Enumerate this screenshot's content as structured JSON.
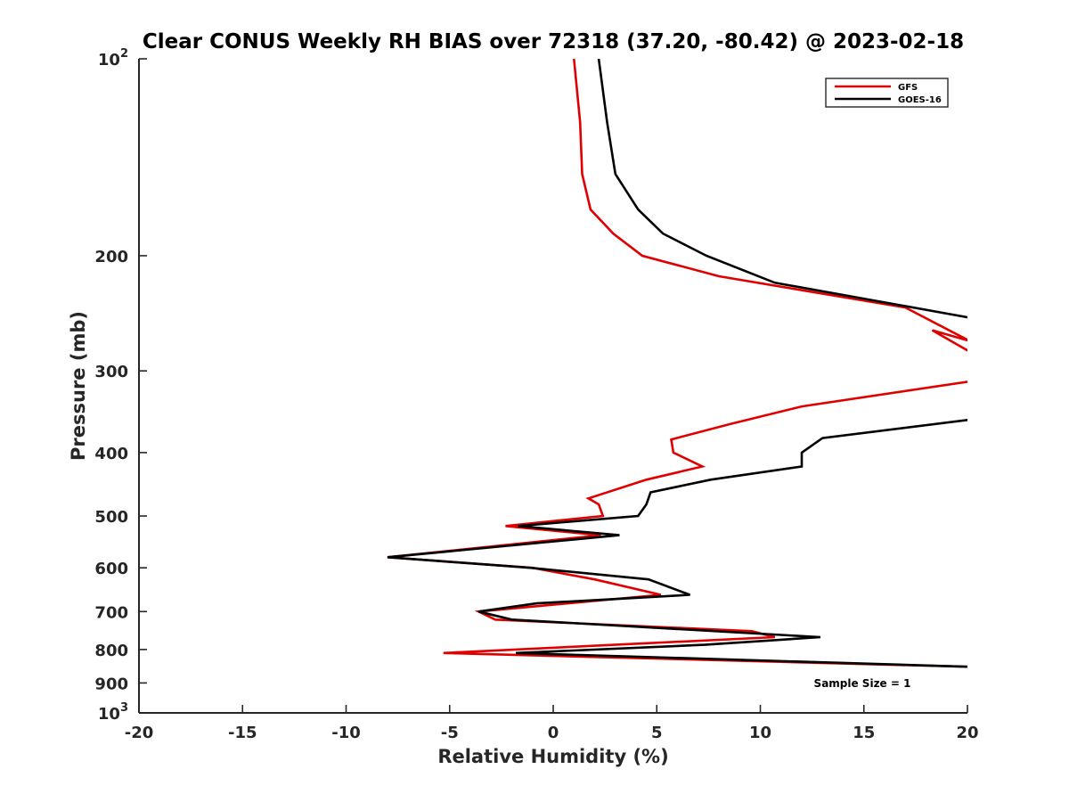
{
  "chart_data": {
    "type": "line",
    "title": "Clear CONUS Weekly RH BIAS over 72318 (37.20, -80.42) @ 2023-02-18",
    "xlabel": "Relative Humidity (%)",
    "ylabel": "Pressure (mb)",
    "xlim": [
      -20,
      20
    ],
    "ylim": [
      100,
      1000
    ],
    "y_scale": "log",
    "y_reversed": true,
    "x_ticks": [
      -20,
      -15,
      -10,
      -5,
      0,
      5,
      10,
      15,
      20
    ],
    "x_tick_labels": [
      "-20",
      "-15",
      "-10",
      "-5",
      "0",
      "5",
      "10",
      "15",
      "20"
    ],
    "y_ticks": [
      {
        "value": 100,
        "label": "10",
        "sup": "2"
      },
      {
        "value": 200,
        "label": "200",
        "sup": ""
      },
      {
        "value": 300,
        "label": "300",
        "sup": ""
      },
      {
        "value": 400,
        "label": "400",
        "sup": ""
      },
      {
        "value": 500,
        "label": "500",
        "sup": ""
      },
      {
        "value": 600,
        "label": "600",
        "sup": ""
      },
      {
        "value": 700,
        "label": "700",
        "sup": ""
      },
      {
        "value": 800,
        "label": "800",
        "sup": ""
      },
      {
        "value": 900,
        "label": "900",
        "sup": ""
      },
      {
        "value": 1000,
        "label": "10",
        "sup": "3"
      }
    ],
    "grid": false,
    "legend_position": "top-right",
    "annotation": "Sample Size = 1",
    "series": [
      {
        "name": "GFS",
        "color": "#e00000",
        "x": [
          1.0,
          1.3,
          1.4,
          1.8,
          2.9,
          4.3,
          8.0,
          17.0,
          20.1,
          18.3,
          20.5,
          20.5,
          12.0,
          8.5,
          5.7,
          5.8,
          7.2,
          4.5,
          1.7,
          2.2,
          2.4,
          -2.3,
          2.3,
          -8.0,
          -1.0,
          2.0,
          5.2,
          -3.6,
          -2.8,
          9.6,
          10.7,
          -5.3,
          20.0
        ],
        "y": [
          100,
          125,
          150,
          170,
          185,
          200,
          215,
          240,
          270,
          260,
          285,
          310,
          340,
          362,
          382,
          400,
          420,
          440,
          470,
          480,
          500,
          518,
          535,
          578,
          600,
          625,
          660,
          700,
          720,
          750,
          766,
          810,
          850
        ]
      },
      {
        "name": "GOES-16",
        "color": "#000000",
        "x": [
          2.2,
          2.6,
          3.0,
          4.1,
          5.3,
          7.4,
          10.7,
          20.5,
          20.5,
          13.0,
          12.0,
          12.0,
          7.6,
          4.7,
          4.5,
          4.1,
          -1.7,
          3.2,
          -8.0,
          -1.1,
          4.6,
          6.6,
          -0.8,
          -3.6,
          -2.0,
          12.9,
          7.3,
          -1.8,
          20.0
        ],
        "y": [
          100,
          125,
          150,
          170,
          185,
          200,
          220,
          250,
          355,
          380,
          400,
          420,
          440,
          460,
          480,
          500,
          518,
          535,
          578,
          600,
          625,
          660,
          680,
          700,
          720,
          766,
          787,
          810,
          850
        ]
      }
    ]
  }
}
